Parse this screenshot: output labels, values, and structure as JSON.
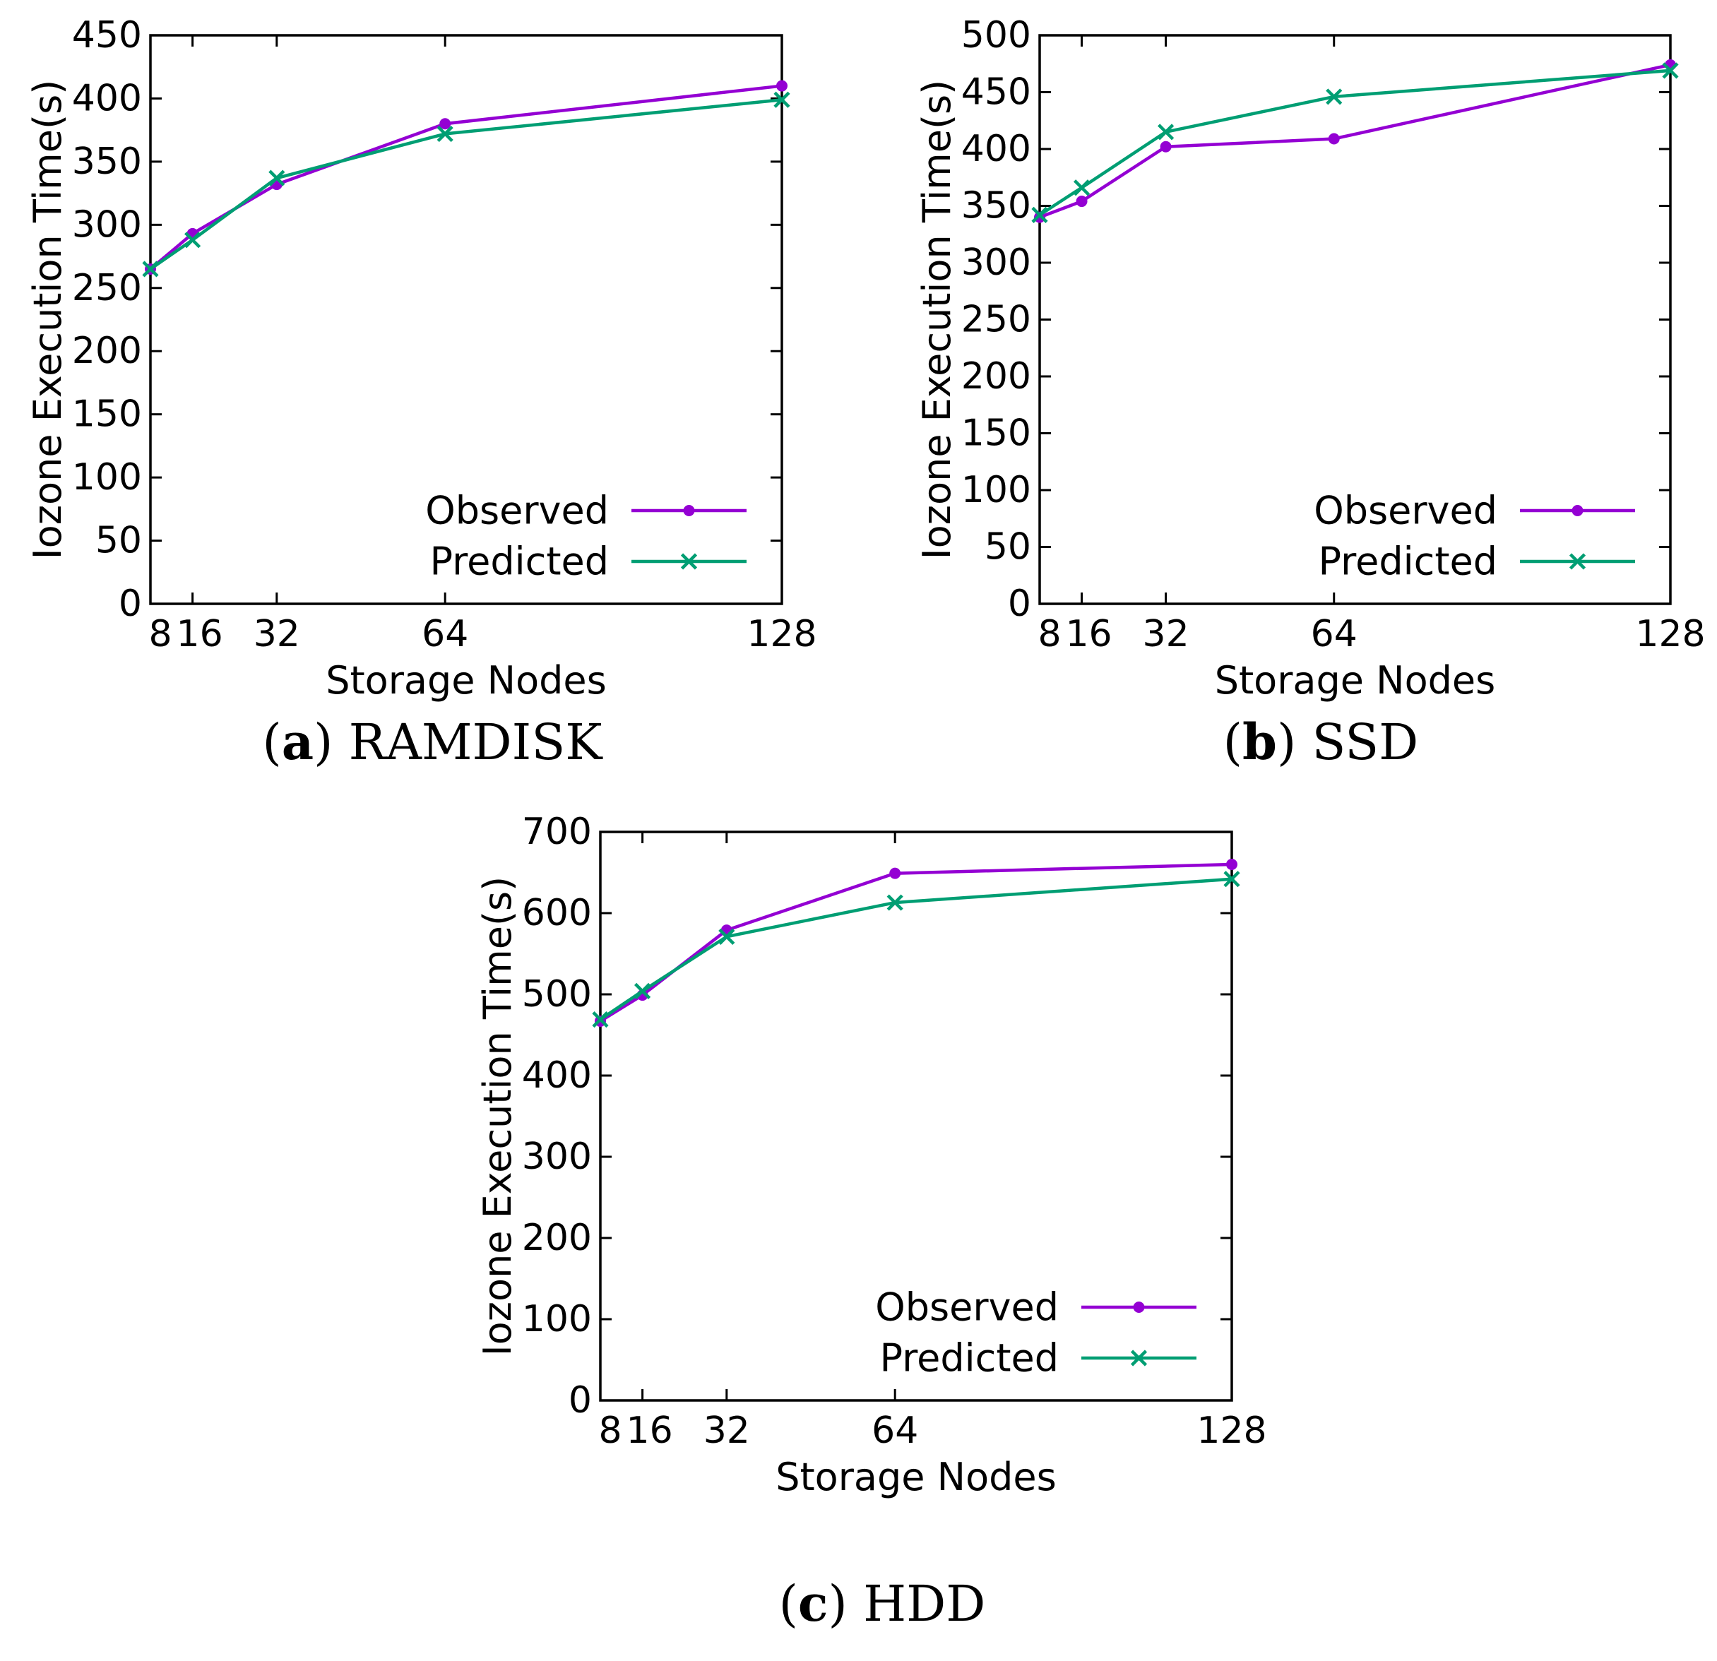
{
  "chart_data": [
    {
      "id": "a",
      "type": "line",
      "caption_letter": "a",
      "caption_text": "RAMDISK",
      "xlabel": "Storage Nodes",
      "ylabel": "Iozone Execution Time(s)",
      "x": [
        8,
        16,
        32,
        64,
        128
      ],
      "xticks": [
        8,
        16,
        32,
        64,
        128
      ],
      "xlim": [
        8,
        128
      ],
      "ylim": [
        0,
        450
      ],
      "yticks": [
        0,
        50,
        100,
        150,
        200,
        250,
        300,
        350,
        400,
        450
      ],
      "legend_position": "bottom-right",
      "series": [
        {
          "name": "Observed",
          "color": "#9400d3",
          "marker": "circle",
          "values": [
            265,
            293,
            332,
            380,
            410
          ]
        },
        {
          "name": "Predicted",
          "color": "#009e73",
          "marker": "x",
          "values": [
            265,
            288,
            337,
            372,
            399
          ]
        }
      ]
    },
    {
      "id": "b",
      "type": "line",
      "caption_letter": "b",
      "caption_text": "SSD",
      "xlabel": "Storage Nodes",
      "ylabel": "Iozone Execution Time(s)",
      "x": [
        8,
        16,
        32,
        64,
        128
      ],
      "xticks": [
        8,
        16,
        32,
        64,
        128
      ],
      "xlim": [
        8,
        128
      ],
      "ylim": [
        0,
        500
      ],
      "yticks": [
        0,
        50,
        100,
        150,
        200,
        250,
        300,
        350,
        400,
        450,
        500
      ],
      "legend_position": "bottom-right",
      "series": [
        {
          "name": "Observed",
          "color": "#9400d3",
          "marker": "circle",
          "values": [
            340,
            354,
            402,
            409,
            474
          ]
        },
        {
          "name": "Predicted",
          "color": "#009e73",
          "marker": "x",
          "values": [
            342,
            366,
            415,
            446,
            469
          ]
        }
      ]
    },
    {
      "id": "c",
      "type": "line",
      "caption_letter": "c",
      "caption_text": "HDD",
      "xlabel": "Storage Nodes",
      "ylabel": "Iozone Execution Time(s)",
      "x": [
        8,
        16,
        32,
        64,
        128
      ],
      "xticks": [
        8,
        16,
        32,
        64,
        128
      ],
      "xlim": [
        8,
        128
      ],
      "ylim": [
        0,
        700
      ],
      "yticks": [
        0,
        100,
        200,
        300,
        400,
        500,
        600,
        700
      ],
      "legend_position": "bottom-right",
      "series": [
        {
          "name": "Observed",
          "color": "#9400d3",
          "marker": "circle",
          "values": [
            467,
            499,
            579,
            649,
            660
          ]
        },
        {
          "name": "Predicted",
          "color": "#009e73",
          "marker": "x",
          "values": [
            469,
            504,
            571,
            613,
            642
          ]
        }
      ]
    }
  ]
}
